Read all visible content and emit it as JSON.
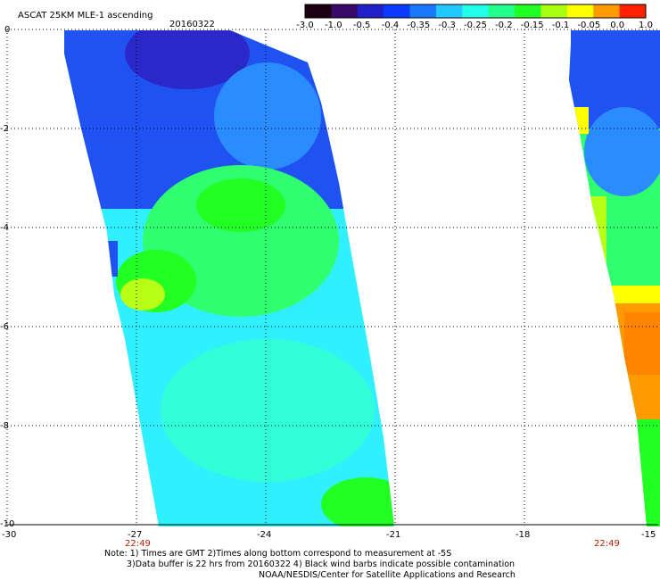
{
  "header": {
    "title": "ASCAT 25KM MLE-1 ascending",
    "date": "20160322"
  },
  "colorbar": {
    "labels": [
      "-3.0",
      "-1.0",
      "-0.5",
      "-0.4",
      "-0.35",
      "-0.3",
      "-0.25",
      "-0.2",
      "-0.15",
      "-0.1",
      "-0.05",
      "0.0",
      "1.0"
    ],
    "colors": [
      "#1a0012",
      "#3a0a6a",
      "#2020c8",
      "#0a3cff",
      "#1a78ff",
      "#22c8ff",
      "#22ffe8",
      "#22ff8a",
      "#22ff22",
      "#a8ff10",
      "#ffff00",
      "#ff9a00",
      "#ff2000"
    ]
  },
  "map": {
    "x_ticks": [
      "-30",
      "-27",
      "-24",
      "-21",
      "-18",
      "-15"
    ],
    "y_ticks": [
      "0",
      "-2",
      "-4",
      "-6",
      "-8",
      "-10"
    ],
    "time_labels": [
      "22:49",
      "22:49"
    ],
    "colors": {
      "deep_blue": "#2a28c8",
      "blue": "#1f52f0",
      "light_blue": "#2a8cff",
      "cyan": "#30f0ff",
      "aqua": "#30ffd8",
      "green": "#30ff70",
      "bright_green": "#22ff22",
      "yellow_green": "#b8ff18",
      "yellow": "#ffff00",
      "orange": "#ff9a00",
      "dark_orange": "#ff8400"
    }
  },
  "notes": {
    "line1": "Note: 1) Times are GMT 2)Times along bottom correspond to measurement at -5S",
    "line2": "3)Data buffer is 22 hrs from 20160322 4) Black wind barbs indicate possible contamination",
    "line3": "NOAA/NESDIS/Center for Satellite Applications and Research"
  }
}
